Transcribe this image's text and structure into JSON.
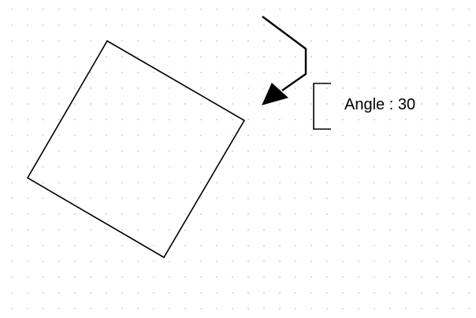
{
  "canvas": {
    "background": "#ffffff",
    "grid_dot_color": "#d2d2d2",
    "stroke_color": "#000000"
  },
  "shapes": {
    "rotated_square": {
      "rotation_degrees": 30
    },
    "arrow": {
      "icon": "arrow-head-icon"
    }
  },
  "annotation": {
    "text": "Angle : 30"
  }
}
